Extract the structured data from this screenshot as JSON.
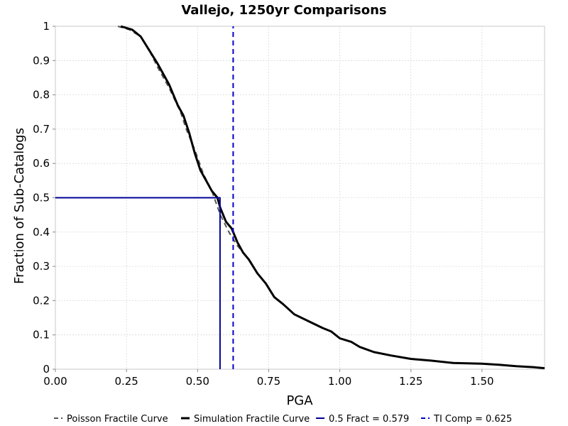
{
  "chart_data": {
    "type": "line",
    "title": "Vallejo, 1250yr Comparisons",
    "xlabel": "PGA",
    "ylabel": "Fraction of Sub-Catalogs",
    "xlim": [
      0,
      1.72
    ],
    "ylim": [
      0,
      1
    ],
    "grid": true,
    "legend_placement": "bottom",
    "x_ticks": [
      "0.00",
      "0.25",
      "0.50",
      "0.75",
      "1.00",
      "1.25",
      "1.50"
    ],
    "x_tick_values": [
      0,
      0.25,
      0.5,
      0.75,
      1.0,
      1.25,
      1.5
    ],
    "y_ticks": [
      "0",
      "0.1",
      "0.2",
      "0.3",
      "0.4",
      "0.5",
      "0.6",
      "0.7",
      "0.8",
      "0.9",
      "1"
    ],
    "y_tick_values": [
      0,
      0.1,
      0.2,
      0.3,
      0.4,
      0.5,
      0.6,
      0.7,
      0.8,
      0.9,
      1.0
    ],
    "series": [
      {
        "name": "Poisson Fractile Curve",
        "color": "#555555",
        "style": "dashed",
        "x": [
          0.22,
          0.26,
          0.3,
          0.33,
          0.36,
          0.4,
          0.44,
          0.46,
          0.49,
          0.52,
          0.55,
          0.58,
          0.61,
          0.64,
          0.67,
          0.69
        ],
        "y": [
          1.0,
          0.99,
          0.97,
          0.93,
          0.88,
          0.82,
          0.75,
          0.7,
          0.64,
          0.57,
          0.52,
          0.45,
          0.4,
          0.36,
          0.33,
          0.31
        ]
      },
      {
        "name": "Simulation Fractile Curve",
        "color": "#000000",
        "style": "solid",
        "x": [
          0.23,
          0.27,
          0.3,
          0.33,
          0.36,
          0.38,
          0.4,
          0.43,
          0.45,
          0.47,
          0.49,
          0.51,
          0.53,
          0.55,
          0.57,
          0.58,
          0.6,
          0.62,
          0.64,
          0.66,
          0.68,
          0.71,
          0.74,
          0.77,
          0.8,
          0.84,
          0.89,
          0.94,
          0.97,
          1.0,
          1.04,
          1.07,
          1.12,
          1.18,
          1.25,
          1.32,
          1.4,
          1.5,
          1.56,
          1.62,
          1.68,
          1.72
        ],
        "y": [
          1.0,
          0.99,
          0.97,
          0.93,
          0.89,
          0.86,
          0.83,
          0.77,
          0.74,
          0.69,
          0.63,
          0.58,
          0.55,
          0.52,
          0.5,
          0.47,
          0.43,
          0.41,
          0.37,
          0.34,
          0.32,
          0.28,
          0.25,
          0.21,
          0.19,
          0.16,
          0.14,
          0.12,
          0.11,
          0.09,
          0.08,
          0.065,
          0.05,
          0.04,
          0.03,
          0.025,
          0.018,
          0.016,
          0.013,
          0.009,
          0.006,
          0.003
        ]
      },
      {
        "name": "0.5 Fract = 0.579",
        "color": "#000099",
        "style": "solid",
        "x": [
          0,
          0.579,
          0.579
        ],
        "y": [
          0.5,
          0.5,
          0
        ]
      },
      {
        "name": "TI Comp = 0.625",
        "color": "#0000cc",
        "style": "dashed",
        "x": [
          0.625,
          0.625
        ],
        "y": [
          0,
          1
        ]
      }
    ]
  }
}
